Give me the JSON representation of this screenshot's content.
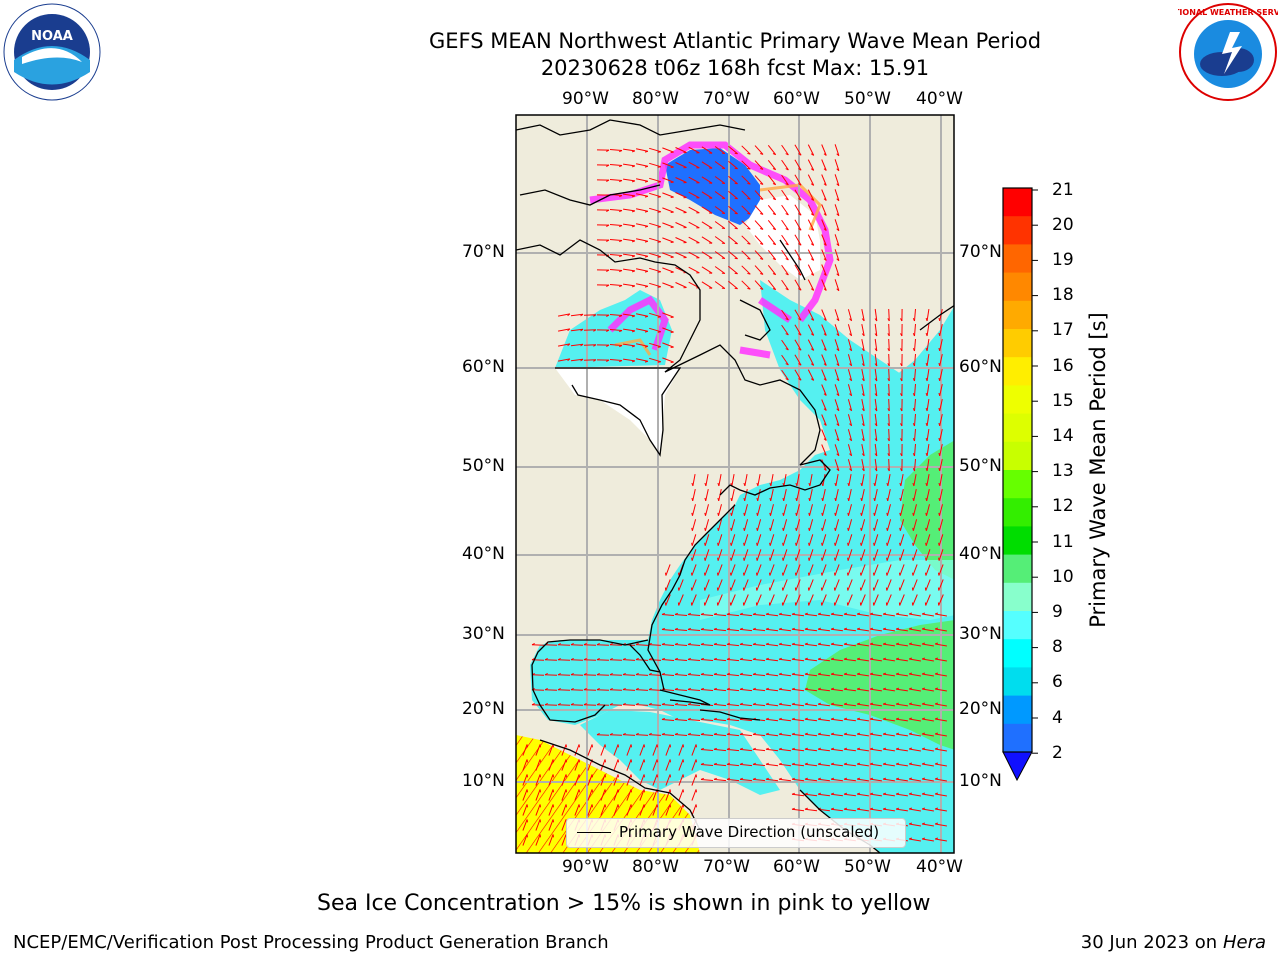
{
  "title": {
    "line1": "GEFS MEAN Northwest Atlantic Primary Wave Mean Period",
    "line2": "20230628 t06z 168h fcst   Max: 15.91"
  },
  "map": {
    "lon_labels": [
      "90°W",
      "80°W",
      "70°W",
      "60°W",
      "50°W",
      "40°W"
    ],
    "lat_labels": [
      "70°N",
      "60°N",
      "50°N",
      "40°N",
      "30°N",
      "20°N",
      "10°N"
    ],
    "legend_label": "Primary Wave Direction (unscaled)",
    "colors": {
      "land": "#efecdc",
      "ocean_default": "#55f0f0",
      "ice": "#ff33ff",
      "arrow": "#ff0000",
      "grid": "#b0b0b0"
    }
  },
  "colorbar": {
    "title": "Primary Wave Mean Period [s]",
    "ticks": [
      "21",
      "20",
      "19",
      "18",
      "17",
      "16",
      "15",
      "14",
      "13",
      "12",
      "11",
      "10",
      "9",
      "8",
      "6",
      "4",
      "2"
    ],
    "colors_top_to_bottom": [
      "#ff0000",
      "#ff3300",
      "#ff6600",
      "#ff8800",
      "#ffaa00",
      "#ffcc00",
      "#ffee00",
      "#eeff00",
      "#ddff00",
      "#c8ff00",
      "#66ff00",
      "#33ee00",
      "#00dd00",
      "#55ee77",
      "#88ffcc",
      "#55ffff",
      "#00ffff",
      "#00ddee",
      "#0099ff",
      "#1f70ff"
    ]
  },
  "footer": {
    "ice_note": "Sea Ice Concentration > 15% is shown in pink to yellow",
    "org": "NCEP/EMC/Verification Post Processing Product Generation Branch",
    "date": "30 Jun 2023 on",
    "machine": "Hera"
  },
  "logos": {
    "left": "NOAA",
    "right": "NATIONAL WEATHER SERVICE"
  }
}
